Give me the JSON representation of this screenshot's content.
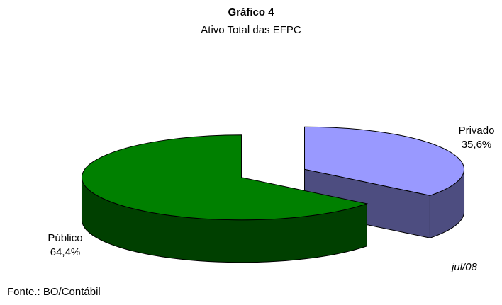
{
  "chart_data": {
    "type": "pie3d",
    "title": "Gráfico 4",
    "subtitle": "Ativo Total das EFPC",
    "categories": [
      "Privado",
      "Público"
    ],
    "values": [
      35.6,
      64.4
    ],
    "value_labels": [
      "35,6%",
      "64,4%"
    ],
    "colors": [
      "#9999ff",
      "#008000"
    ],
    "annotation": "jul/08",
    "source": "Fonte.: BO/Contábil"
  }
}
